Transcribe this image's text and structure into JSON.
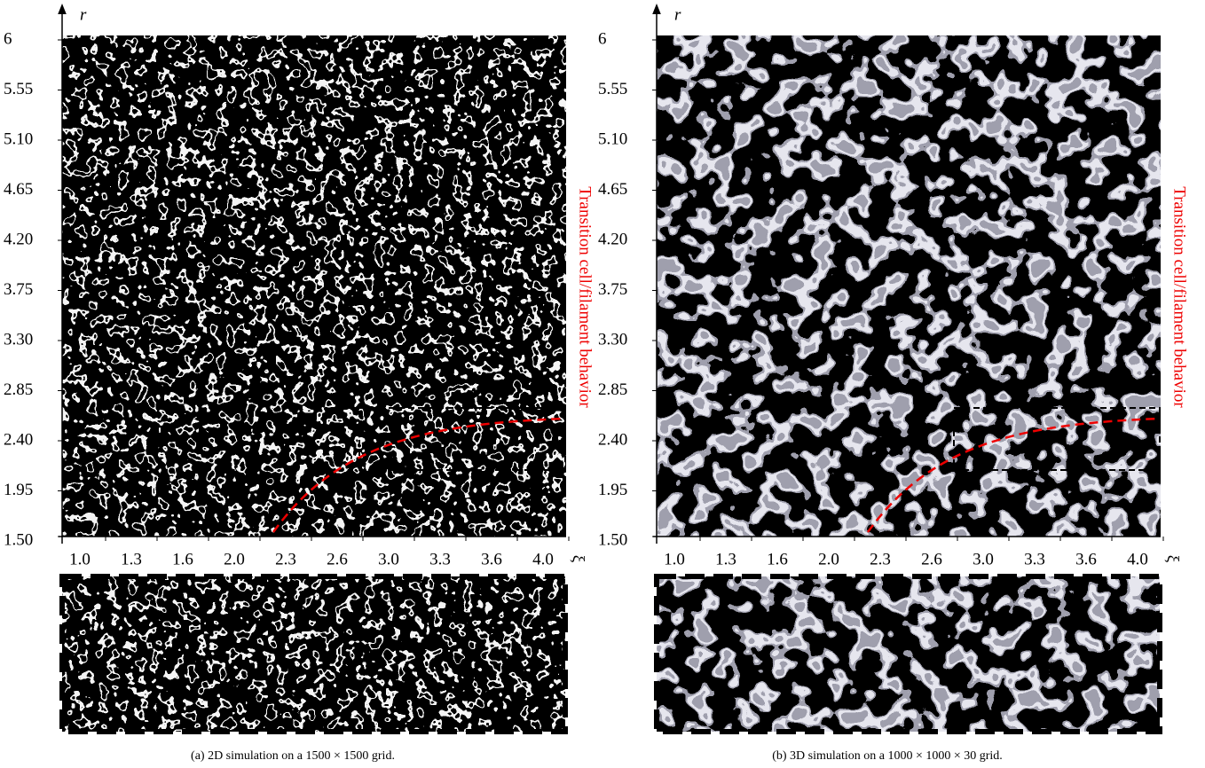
{
  "panels": [
    {
      "y_axis_label": "r",
      "y_ticks": [
        "6",
        "5.55",
        "5.10",
        "4.65",
        "4.20",
        "3.75",
        "3.30",
        "2.85",
        "2.40",
        "1.95",
        "1.50"
      ],
      "x_axis_label": "ξ",
      "x_ticks": [
        "1.0",
        "1.3",
        "1.6",
        "2.0",
        "2.3",
        "2.6",
        "3.0",
        "3.3",
        "3.6",
        "4.0"
      ],
      "annotation": "Transition cell/filament behavior",
      "caption": "(a) 2D simulation on a 1500 × 1500 grid."
    },
    {
      "y_axis_label": "r",
      "y_ticks": [
        "6",
        "5.55",
        "5.10",
        "4.65",
        "4.20",
        "3.75",
        "3.30",
        "2.85",
        "2.40",
        "1.95",
        "1.50"
      ],
      "x_axis_label": "ξ",
      "x_ticks": [
        "1.0",
        "1.3",
        "1.6",
        "2.0",
        "2.3",
        "2.6",
        "3.0",
        "3.3",
        "3.6",
        "4.0"
      ],
      "annotation": "Transition cell/filament behavior",
      "caption": "(b) 3D simulation on a 1000 × 1000 × 30 grid."
    }
  ]
}
